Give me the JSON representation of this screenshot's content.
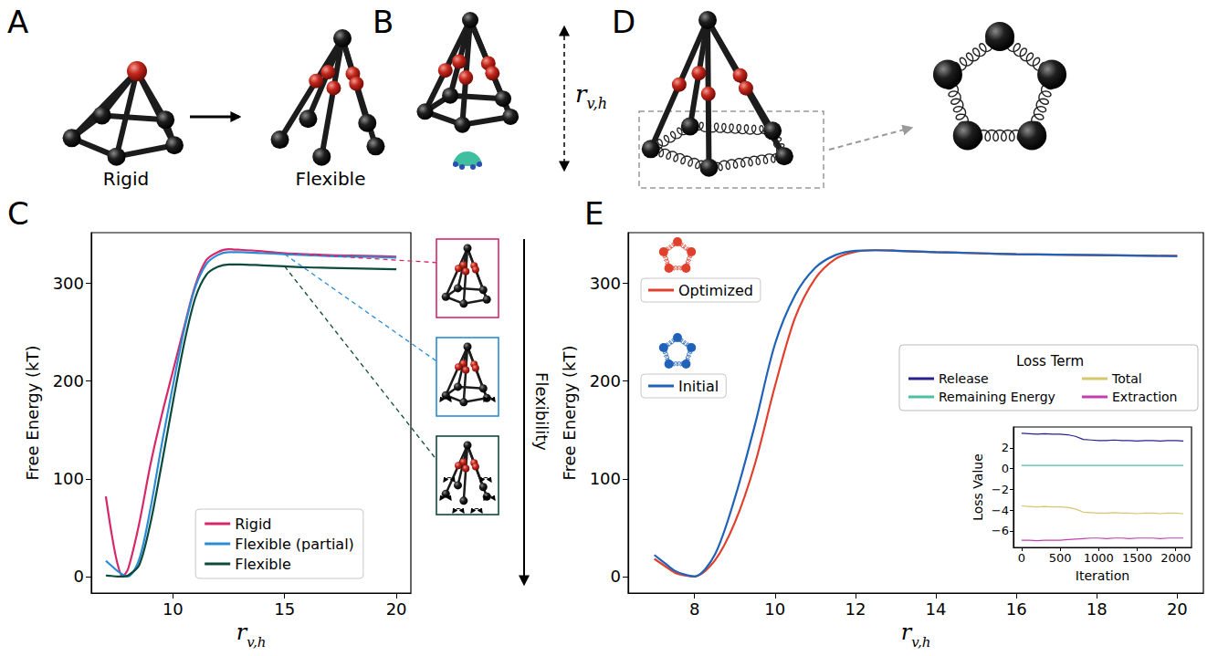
{
  "panel_labels": [
    "A",
    "B",
    "C",
    "D",
    "E"
  ],
  "panel_a": {
    "left_label": "Rigid",
    "right_label": "Flexible"
  },
  "panel_b": {
    "arrow_label": {
      "main": "r",
      "subscript": "v,h"
    }
  },
  "panel_c": {
    "arrow_label": "Flexibility"
  },
  "chart_data": [
    {
      "type": "line",
      "xlabel": {
        "main": "r",
        "subscript": "v,h"
      },
      "ylabel": "Free Energy (kT)",
      "xlim": [
        6.35,
        20.65
      ],
      "xticks": [
        10,
        15,
        20
      ],
      "ylim": [
        -17,
        352
      ],
      "yticks": [
        0,
        100,
        200,
        300
      ],
      "grid": false,
      "legend": "lower right",
      "x": [
        7,
        7.25,
        7.5,
        7.75,
        8,
        8.5,
        9,
        9.5,
        10,
        10.5,
        11,
        11.5,
        12,
        12.5,
        13,
        14,
        15,
        16,
        17,
        18,
        19,
        20
      ],
      "series": [
        {
          "name": "Rigid",
          "color": "#d6286b",
          "values": [
            82,
            45,
            15,
            0,
            8,
            55,
            115,
            165,
            210,
            255,
            298,
            324,
            332,
            335,
            334.5,
            333,
            331,
            330,
            329,
            328.5,
            328,
            327.5
          ]
        },
        {
          "name": "Flexible (partial)",
          "color": "#2b8cd6",
          "values": [
            16,
            11,
            6,
            2,
            0,
            18,
            70,
            135,
            195,
            252,
            296,
            320,
            329,
            332,
            332,
            331,
            330,
            329,
            328,
            327.5,
            327,
            326.5
          ]
        },
        {
          "name": "Flexible",
          "color": "#0c4a3c",
          "values": [
            1,
            0.5,
            0,
            0,
            1,
            12,
            55,
            115,
            178,
            238,
            285,
            309,
            317,
            319.5,
            319.5,
            318.5,
            317.5,
            316.5,
            316,
            315.5,
            315,
            314.5
          ]
        }
      ]
    },
    {
      "type": "line",
      "xlabel": {
        "main": "r",
        "subscript": "v,h"
      },
      "ylabel": "Free Energy (kT)",
      "xlim": [
        6.35,
        20.65
      ],
      "xticks": [
        8,
        10,
        12,
        14,
        16,
        18,
        20
      ],
      "ylim": [
        -17,
        352
      ],
      "yticks": [
        0,
        100,
        200,
        300
      ],
      "grid": false,
      "legend": "upper left",
      "x": [
        7,
        7.25,
        7.5,
        7.75,
        8,
        8.5,
        9,
        9.5,
        10,
        10.5,
        11,
        11.5,
        12,
        12.5,
        13,
        14,
        15,
        16,
        17,
        18,
        19,
        20
      ],
      "series": [
        {
          "name": "Optimized",
          "color": "#e0412c",
          "values": [
            18,
            11,
            4,
            1,
            0,
            16,
            55,
            115,
            195,
            265,
            305,
            325,
            332.5,
            334,
            333.5,
            332,
            331,
            330,
            329.5,
            329,
            328.5,
            328
          ]
        },
        {
          "name": "Initial",
          "color": "#1f62b8",
          "values": [
            22,
            14,
            6,
            2,
            0,
            22,
            80,
            155,
            238,
            288,
            316,
            329,
            333.5,
            334,
            333.5,
            332,
            331,
            330,
            329.5,
            329,
            328.5,
            328
          ]
        }
      ]
    },
    {
      "type": "line",
      "xlabel": "Iteration",
      "ylabel": "Loss Value",
      "legend_title": "Loss Term",
      "xlim": [
        -105,
        2205
      ],
      "xticks": [
        0,
        500,
        1000,
        1500,
        2000
      ],
      "ylim": [
        -7.6,
        4.0
      ],
      "yticks": [
        {
          "value": -6,
          "label": "−6"
        },
        {
          "value": -4,
          "label": "−4"
        },
        {
          "value": -2,
          "label": "−2"
        },
        0,
        2
      ],
      "grid": false,
      "legend": "upper right",
      "x": [
        0,
        100,
        200,
        300,
        400,
        500,
        600,
        700,
        800,
        900,
        1000,
        1100,
        1200,
        1300,
        1400,
        1500,
        1600,
        1700,
        1800,
        1900,
        2000,
        2100
      ],
      "series": [
        {
          "name": "Release",
          "color": "#2a1f8f",
          "values": [
            3.4,
            3.35,
            3.3,
            3.35,
            3.3,
            3.3,
            3.25,
            3.1,
            2.8,
            2.75,
            2.7,
            2.7,
            2.75,
            2.7,
            2.7,
            2.65,
            2.7,
            2.7,
            2.65,
            2.7,
            2.7,
            2.65
          ]
        },
        {
          "name": "Remaining Energy",
          "color": "#4dbfa3",
          "values": [
            0.3,
            0.3,
            0.3,
            0.3,
            0.3,
            0.3,
            0.3,
            0.3,
            0.3,
            0.3,
            0.3,
            0.3,
            0.3,
            0.3,
            0.3,
            0.3,
            0.3,
            0.3,
            0.3,
            0.3,
            0.3,
            0.3
          ]
        },
        {
          "name": "Total",
          "color": "#d6c66e",
          "values": [
            -3.6,
            -3.65,
            -3.7,
            -3.65,
            -3.7,
            -3.7,
            -3.75,
            -3.9,
            -4.2,
            -4.25,
            -4.3,
            -4.3,
            -4.25,
            -4.3,
            -4.3,
            -4.35,
            -4.3,
            -4.3,
            -4.35,
            -4.3,
            -4.3,
            -4.35
          ]
        },
        {
          "name": "Extraction",
          "color": "#c43fae",
          "values": [
            -6.9,
            -6.9,
            -6.95,
            -6.9,
            -6.9,
            -6.9,
            -6.85,
            -6.8,
            -6.75,
            -6.7,
            -6.7,
            -6.75,
            -6.7,
            -6.7,
            -6.75,
            -6.7,
            -6.7,
            -6.7,
            -6.75,
            -6.7,
            -6.7,
            -6.7
          ]
        }
      ]
    }
  ]
}
